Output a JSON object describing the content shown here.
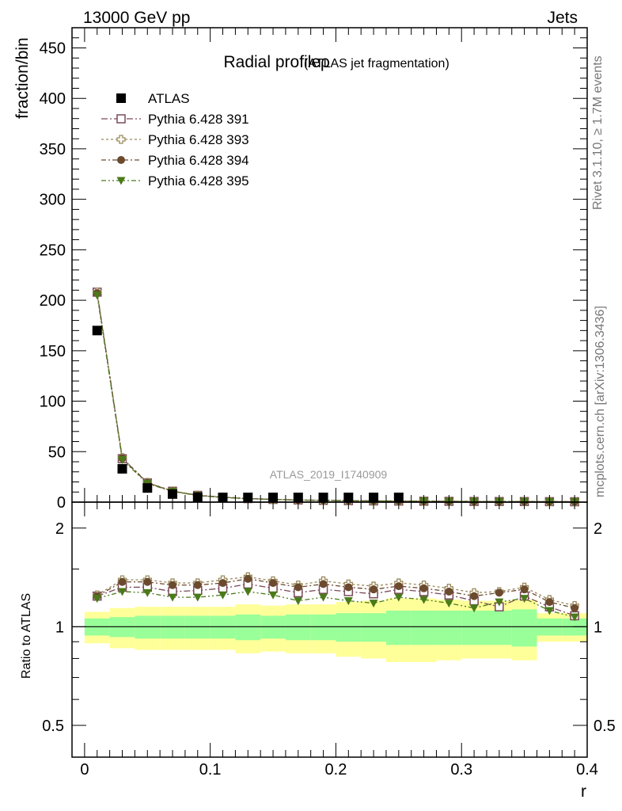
{
  "header": {
    "energy": "13000 GeV pp",
    "process": "Jets",
    "side_rivet": "Rivet 3.1.10, ≥ 1.7M events",
    "side_mcplots": "mcplots.cern.ch [arXiv:1306.3436]",
    "watermark": "ATLAS_2019_I1740909"
  },
  "chart_data": {
    "type": "scatter",
    "title": "Radial profileρ",
    "subtitle": "(ATLAS jet fragmentation)",
    "xlabel": "r",
    "ylabel": "fraction/bin",
    "ratio_ylabel": "Ratio to ATLAS",
    "xlim": [
      -0.01,
      0.4
    ],
    "ylim": [
      0,
      470
    ],
    "ratio_ylim": [
      0.4,
      2.4
    ],
    "ratio_log_scale": true,
    "x_ticks": [
      0,
      0.1,
      0.2,
      0.3,
      0.4
    ],
    "x_tick_labels": [
      "0",
      "0.1",
      "0.2",
      "0.3",
      "0.4"
    ],
    "y_ticks": [
      0,
      50,
      100,
      150,
      200,
      250,
      300,
      350,
      400,
      450
    ],
    "y_tick_labels": [
      "0",
      "50",
      "100",
      "150",
      "200",
      "250",
      "300",
      "350",
      "400",
      "450"
    ],
    "ratio_ticks": [
      0.5,
      1,
      2
    ],
    "ratio_tick_labels": [
      "0.5",
      "1",
      "2"
    ],
    "legend_position": "top-left",
    "x": [
      0.01,
      0.03,
      0.05,
      0.07,
      0.09,
      0.11,
      0.13,
      0.15,
      0.17,
      0.19,
      0.21,
      0.23,
      0.25,
      0.27,
      0.29,
      0.31,
      0.33,
      0.35,
      0.37,
      0.39
    ],
    "data": {
      "name": "ATLAS",
      "values": [
        170,
        33,
        14,
        8,
        5,
        3.5,
        2.5,
        2,
        1.6,
        1.3,
        1.1,
        0.9,
        0.8,
        0.7,
        0.6,
        0.55,
        0.5,
        0.45,
        0.4,
        0.35
      ],
      "band_inner": [
        0.06,
        0.07,
        0.08,
        0.08,
        0.08,
        0.08,
        0.09,
        0.08,
        0.09,
        0.09,
        0.1,
        0.1,
        0.12,
        0.12,
        0.12,
        0.12,
        0.12,
        0.13,
        0.06,
        0.06
      ],
      "band_outer": [
        0.11,
        0.14,
        0.15,
        0.15,
        0.15,
        0.15,
        0.17,
        0.16,
        0.17,
        0.17,
        0.19,
        0.2,
        0.22,
        0.22,
        0.21,
        0.2,
        0.2,
        0.21,
        0.1,
        0.1
      ]
    },
    "series": [
      {
        "name": "Pythia 6.428 391",
        "color": "#7a4a5a",
        "marker": "open-square",
        "dash": "8 3 2 3",
        "values": [
          208,
          43,
          19,
          10.8,
          6.7,
          4.8,
          3.5,
          2.7,
          2.1,
          1.75,
          1.45,
          1.2,
          1.05,
          0.92,
          0.78,
          0.68,
          0.6,
          0.57,
          0.46,
          0.39
        ],
        "ratio": [
          1.24,
          1.32,
          1.32,
          1.28,
          1.29,
          1.31,
          1.35,
          1.31,
          1.27,
          1.3,
          1.28,
          1.26,
          1.3,
          1.28,
          1.25,
          1.2,
          1.15,
          1.24,
          1.15,
          1.08
        ]
      },
      {
        "name": "Pythia 6.428 393",
        "color": "#9a8a5a",
        "marker": "open-cross",
        "dash": "3 3",
        "values": [
          208,
          44,
          19.5,
          11,
          6.9,
          5.0,
          3.6,
          2.8,
          2.15,
          1.8,
          1.5,
          1.25,
          1.1,
          0.95,
          0.8,
          0.7,
          0.62,
          0.58,
          0.48,
          0.41
        ],
        "ratio": [
          1.25,
          1.39,
          1.39,
          1.36,
          1.36,
          1.39,
          1.42,
          1.38,
          1.34,
          1.38,
          1.35,
          1.33,
          1.36,
          1.34,
          1.31,
          1.27,
          1.28,
          1.32,
          1.21,
          1.16
        ]
      },
      {
        "name": "Pythia 6.428 394",
        "color": "#6b4a2e",
        "marker": "filled-circle",
        "dash": "6 3 2 3",
        "values": [
          207,
          43.5,
          19.2,
          10.9,
          6.8,
          4.9,
          3.55,
          2.75,
          2.1,
          1.78,
          1.48,
          1.22,
          1.08,
          0.93,
          0.79,
          0.69,
          0.61,
          0.58,
          0.47,
          0.4
        ],
        "ratio": [
          1.24,
          1.37,
          1.37,
          1.34,
          1.34,
          1.36,
          1.4,
          1.36,
          1.32,
          1.35,
          1.32,
          1.3,
          1.33,
          1.31,
          1.28,
          1.24,
          1.27,
          1.3,
          1.19,
          1.14
        ]
      },
      {
        "name": "Pythia 6.428 395",
        "color": "#4a7a1a",
        "marker": "filled-triangle-down",
        "dash": "6 3 2 3 2 3",
        "values": [
          205,
          42,
          18.5,
          10.5,
          6.5,
          4.6,
          3.35,
          2.6,
          2.0,
          1.7,
          1.4,
          1.15,
          1.02,
          0.88,
          0.74,
          0.65,
          0.58,
          0.55,
          0.44,
          0.37
        ],
        "ratio": [
          1.22,
          1.28,
          1.27,
          1.23,
          1.23,
          1.25,
          1.28,
          1.25,
          1.2,
          1.23,
          1.2,
          1.18,
          1.23,
          1.21,
          1.18,
          1.14,
          1.19,
          1.22,
          1.12,
          1.07
        ]
      }
    ]
  }
}
